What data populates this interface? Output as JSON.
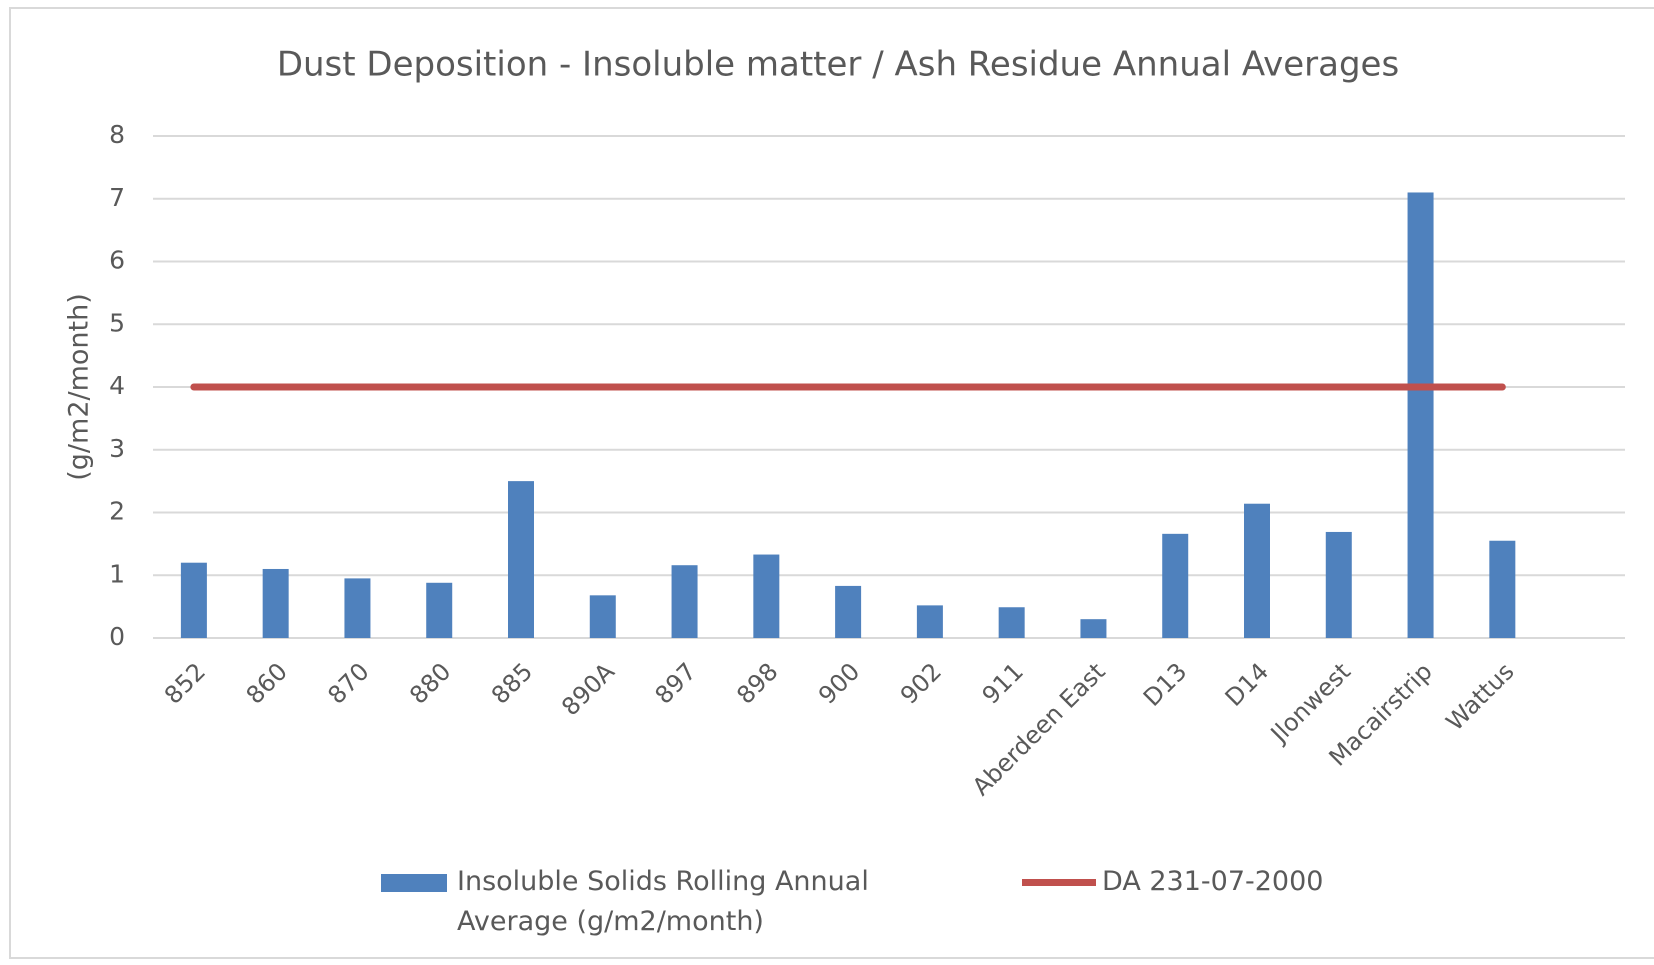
{
  "chart_data": {
    "type": "bar",
    "title": "Dust Deposition - Insoluble matter / Ash Residue Annual Averages",
    "y_label": "(g/m2/month)",
    "categories": [
      "852",
      "860",
      "870",
      "880",
      "885",
      "890A",
      "897",
      "898",
      "900",
      "902",
      "911",
      "Aberdeen East",
      "D13",
      "D14",
      "Jlonwest",
      "Macairstrip",
      "Wattus"
    ],
    "series": [
      {
        "name": "Insoluble Solids Rolling Annual Average (g/m2/month)",
        "type": "bar",
        "color": "#4f81bd",
        "values": [
          1.2,
          1.1,
          0.95,
          0.88,
          2.5,
          0.68,
          1.16,
          1.33,
          0.83,
          0.52,
          0.49,
          0.3,
          1.66,
          2.14,
          1.69,
          7.1,
          1.55
        ]
      },
      {
        "name": "DA 231-07-2000",
        "type": "line",
        "color": "#c0504d",
        "values": [
          4,
          4,
          4,
          4,
          4,
          4,
          4,
          4,
          4,
          4,
          4,
          4,
          4,
          4,
          4,
          4,
          4
        ]
      }
    ],
    "ylim": [
      0,
      8
    ],
    "yticks": [
      0,
      1,
      2,
      3,
      4,
      5,
      6,
      7,
      8
    ],
    "grid": true,
    "legend": "bottom"
  }
}
